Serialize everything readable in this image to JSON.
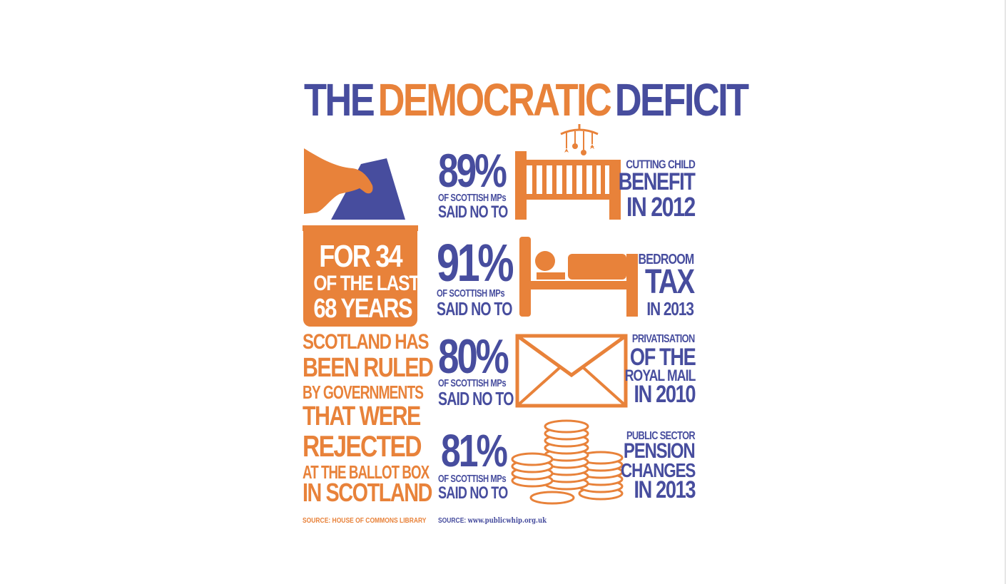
{
  "title": {
    "the": "THE",
    "democratic": "DEMOCRATIC",
    "deficit": "DEFICIT"
  },
  "box": {
    "line1": "FOR 34",
    "line2": "OF THE LAST",
    "line3": "68 YEARS"
  },
  "ruled": [
    "SCOTLAND HAS",
    "BEEN RULED",
    "BY GOVERNMENTS",
    "THAT WERE",
    "REJECTED",
    "AT THE BALLOT BOX",
    "IN SCOTLAND"
  ],
  "stats": [
    {
      "percent": "89%",
      "of": "OF SCOTTISH MPs",
      "said": "SAID NO TO",
      "l1": "CUTTING CHILD",
      "l2": "BENEFIT",
      "l3": "IN 2012"
    },
    {
      "percent": "91%",
      "of": "OF SCOTTISH MPs",
      "said": "SAID NO TO",
      "l1": "BEDROOM",
      "l2": "TAX",
      "l3": "IN 2013"
    },
    {
      "percent": "80%",
      "of": "OF SCOTTISH MPs",
      "said": "SAID NO TO",
      "l1": "PRIVATISATION",
      "l2": "OF THE",
      "l3": "ROYAL MAIL",
      "l4": "IN 2010"
    },
    {
      "percent": "81%",
      "of": "OF SCOTTISH MPs",
      "said": "SAID NO TO",
      "l1": "PUBLIC SECTOR",
      "l2": "PENSION",
      "l3": "CHANGES",
      "l4": "IN 2013"
    }
  ],
  "sources": {
    "left": "SOURCE: HOUSE OF COMMONS LIBRARY",
    "right_label": "SOURCE:",
    "right_url": "www.publicwhip.org.uk"
  },
  "icons": [
    "ballot-hand-icon",
    "cot-icon",
    "bed-icon",
    "envelope-icon",
    "coins-icon"
  ],
  "colors": {
    "blue": "#474d9e",
    "orange": "#e8823a"
  }
}
